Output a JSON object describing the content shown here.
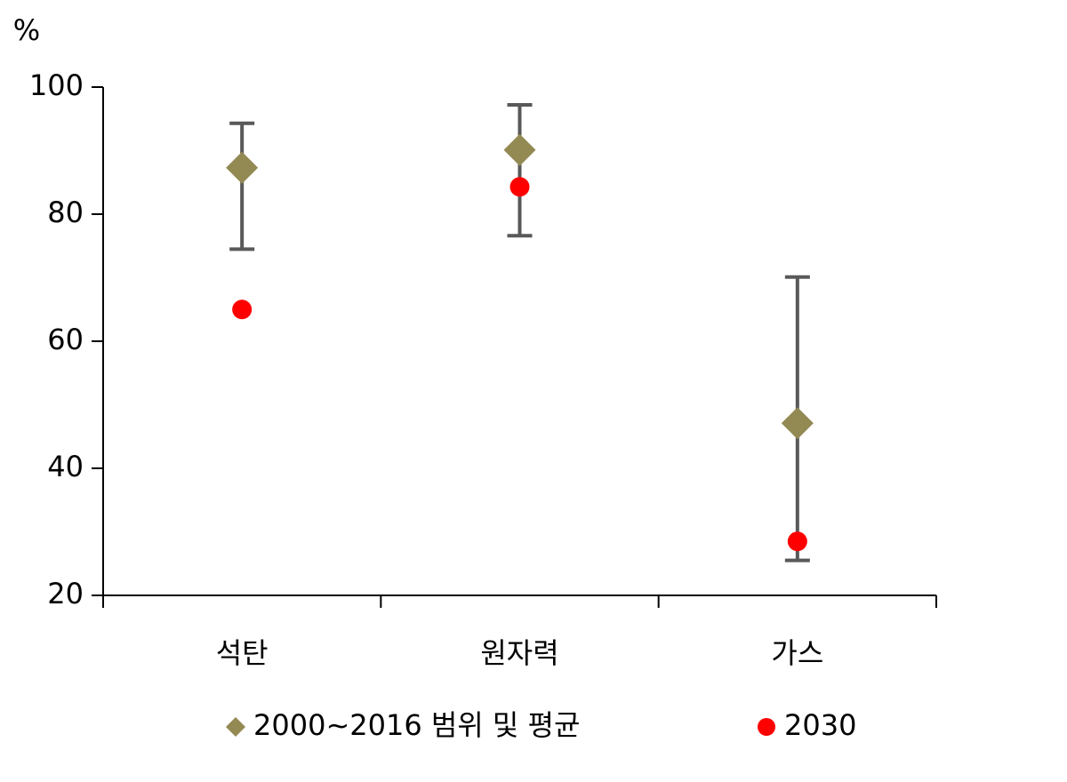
{
  "chart_data": {
    "type": "range-dot",
    "y_label": "%",
    "categories": [
      "석탄",
      "원자력",
      "가스"
    ],
    "ylim": [
      20,
      100
    ],
    "yticks": [
      20,
      40,
      60,
      80,
      100
    ],
    "series": [
      {
        "name": "2000~2016 범위 및 평균",
        "color": "#938953",
        "marker": "diamond",
        "values": [
          87.3,
          90.1,
          47.1
        ],
        "low": [
          74.5,
          76.6,
          25.5
        ],
        "high": [
          94.3,
          97.2,
          70.1
        ]
      },
      {
        "name": "2030",
        "color": "#ff0000",
        "marker": "circle",
        "values": [
          65,
          84.3,
          28.5
        ]
      }
    ]
  }
}
